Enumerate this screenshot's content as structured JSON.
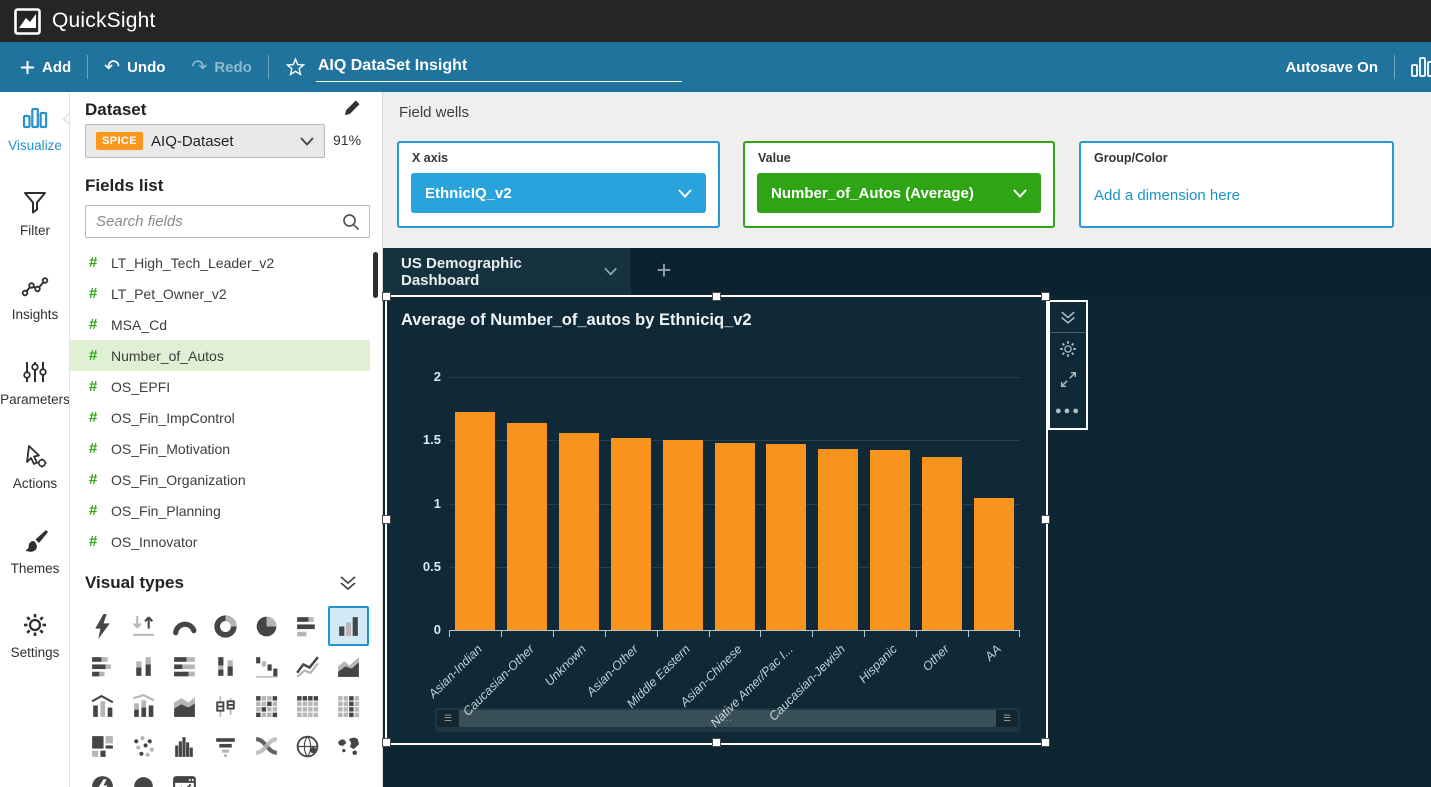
{
  "colors": {
    "accent_blue": "#2492CF",
    "toolbar_teal": "#1F739D",
    "header_black": "#252528",
    "canvas_dark": "#0D2531",
    "visual_dark": "#0F2A36",
    "bar_orange": "#F8941D",
    "pill_blue": "#2AA3DC",
    "pill_green": "#2FA414",
    "spice_orange": "#F9981D",
    "field_hash_green": "#2FA512",
    "selected_field_bg": "#DFF0D5"
  },
  "header": {
    "app_title": "QuickSight"
  },
  "toolbar": {
    "add_label": "Add",
    "undo_label": "Undo",
    "redo_label": "Redo",
    "analysis_name": "AIQ DataSet Insight",
    "autosave_label": "Autosave On"
  },
  "sidebar": {
    "items": [
      {
        "label": "Visualize",
        "icon": "bar-chart-icon",
        "active": true
      },
      {
        "label": "Filter",
        "icon": "filter-funnel-icon",
        "active": false
      },
      {
        "label": "Insights",
        "icon": "insights-line-icon",
        "active": false
      },
      {
        "label": "Parameters",
        "icon": "parameters-sliders-icon",
        "active": false
      },
      {
        "label": "Actions",
        "icon": "actions-hand-icon",
        "active": false
      },
      {
        "label": "Themes",
        "icon": "themes-brush-icon",
        "active": false
      },
      {
        "label": "Settings",
        "icon": "settings-gear-icon",
        "active": false
      }
    ]
  },
  "dataset_panel": {
    "title": "Dataset",
    "spice_badge": "SPICE",
    "dataset_name": "AIQ-Dataset",
    "spice_usage": "91%",
    "fields_list_label": "Fields list",
    "search_placeholder": "Search fields",
    "fields": [
      {
        "name": "LT_High_Tech_Leader_v2",
        "selected": false
      },
      {
        "name": "LT_Pet_Owner_v2",
        "selected": false
      },
      {
        "name": "MSA_Cd",
        "selected": false
      },
      {
        "name": "Number_of_Autos",
        "selected": true
      },
      {
        "name": "OS_EPFI",
        "selected": false
      },
      {
        "name": "OS_Fin_ImpControl",
        "selected": false
      },
      {
        "name": "OS_Fin_Motivation",
        "selected": false
      },
      {
        "name": "OS_Fin_Organization",
        "selected": false
      },
      {
        "name": "OS_Fin_Planning",
        "selected": false
      },
      {
        "name": "OS_Innovator",
        "selected": false
      }
    ]
  },
  "visual_types": {
    "title": "Visual types",
    "items": [
      {
        "name": "insights-bolt",
        "selected": false
      },
      {
        "name": "kpi",
        "selected": false
      },
      {
        "name": "gauge",
        "selected": false
      },
      {
        "name": "donut",
        "selected": false
      },
      {
        "name": "pie",
        "selected": false
      },
      {
        "name": "bar-horizontal",
        "selected": false
      },
      {
        "name": "bar-vertical",
        "selected": true
      },
      {
        "name": "bar-horizontal-stacked",
        "selected": false
      },
      {
        "name": "bar-vertical-grouped",
        "selected": false
      },
      {
        "name": "bar-horizontal-stacked-100",
        "selected": false
      },
      {
        "name": "bar-vertical-stacked",
        "selected": false
      },
      {
        "name": "waterfall",
        "selected": false
      },
      {
        "name": "line-chart",
        "selected": false
      },
      {
        "name": "area-chart",
        "selected": false
      },
      {
        "name": "combo-bar-line",
        "selected": false
      },
      {
        "name": "combo-stacked-line",
        "selected": false
      },
      {
        "name": "stacked-area",
        "selected": false
      },
      {
        "name": "box-plot",
        "selected": false
      },
      {
        "name": "heatmap",
        "selected": false
      },
      {
        "name": "pivot-table",
        "selected": false
      },
      {
        "name": "table",
        "selected": false
      },
      {
        "name": "treemap",
        "selected": false
      },
      {
        "name": "scatter-plot",
        "selected": false
      },
      {
        "name": "histogram",
        "selected": false
      },
      {
        "name": "funnel",
        "selected": false
      },
      {
        "name": "sankey",
        "selected": false
      },
      {
        "name": "points-on-map",
        "selected": false
      },
      {
        "name": "filled-map",
        "selected": false
      },
      {
        "name": "insight-circle",
        "selected": false
      },
      {
        "name": "dot-plot",
        "selected": false
      },
      {
        "name": "custom-visual",
        "selected": false
      }
    ]
  },
  "field_wells": {
    "section_label": "Field wells",
    "x_axis": {
      "label": "X axis",
      "value": "EthnicIQ_v2"
    },
    "value": {
      "label": "Value",
      "value": "Number_of_Autos (Average)"
    },
    "group_color": {
      "label": "Group/Color",
      "placeholder": "Add a dimension here"
    }
  },
  "sheet": {
    "tab_label": "US Demographic Dashboard",
    "add_tab_label": "+"
  },
  "chart_data": {
    "type": "bar",
    "title": "Average of Number_of_autos by Ethniciq_v2",
    "categories": [
      "Asian-Indian",
      "Caucasian-Other",
      "Unknown",
      "Asian-Other",
      "Middle Eastern",
      "Asian-Chinese",
      "Native Amer/Pac I...",
      "Caucasian-Jewish",
      "Hispanic",
      "Other",
      "AA"
    ],
    "values": [
      1.72,
      1.64,
      1.56,
      1.52,
      1.5,
      1.48,
      1.47,
      1.43,
      1.42,
      1.37,
      1.04
    ],
    "xlabel": "",
    "ylabel": "",
    "ylim": [
      0,
      2
    ],
    "yticks": [
      0,
      0.5,
      1,
      1.5,
      2
    ],
    "bar_color": "#F8941D",
    "grid": true,
    "legend": false
  }
}
